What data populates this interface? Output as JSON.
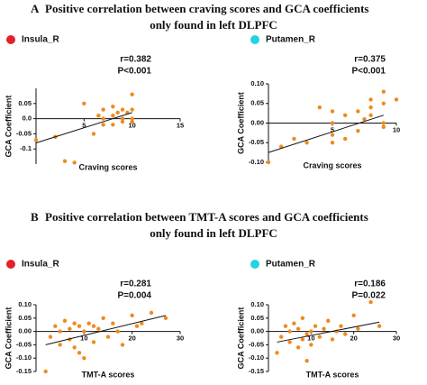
{
  "sections": [
    {
      "label": "A",
      "title_lines": [
        "Positive correlation between craving scores and  GCA coefficients",
        "only found in left DLPFC"
      ]
    },
    {
      "label": "B",
      "title_lines": [
        "Positive correlation between TMT-A scores and  GCA coefficients",
        "only found in left DLPFC"
      ]
    }
  ],
  "chart_data": [
    {
      "type": "scatter",
      "region": "Insula_R",
      "region_color": "#e4202a",
      "r_text": "r=0.382",
      "p_text": "P<0.001",
      "x_label": "Craving scores",
      "y_label": "GCA Coefficient",
      "color": "#ee8a1e",
      "xlim": [
        0,
        15
      ],
      "ylim": [
        -0.15,
        0.1
      ],
      "xticks": [
        5,
        10,
        15
      ],
      "yticks": [
        -0.1,
        -0.05,
        {
          "value": 0,
          "label": "0.0"
        },
        0.05
      ],
      "x": [
        0,
        2,
        3,
        4,
        5,
        6,
        6.5,
        7,
        7,
        7,
        8,
        8,
        8,
        8.5,
        9,
        9,
        9,
        9.5,
        10,
        10,
        10,
        10
      ],
      "values": [
        -0.07,
        -0.06,
        -0.14,
        -0.145,
        0.05,
        -0.05,
        0.01,
        0.03,
        0,
        -0.02,
        0.01,
        -0.02,
        0.04,
        0.02,
        0.03,
        0,
        -0.01,
        0.02,
        0.03,
        0.08,
        0,
        -0.01
      ],
      "trendline": {
        "x": [
          0,
          10
        ],
        "values": [
          -0.08,
          0.02
        ]
      }
    },
    {
      "type": "scatter",
      "region": "Putamen_R",
      "region_color": "#22d3e0",
      "r_text": "r=0.375",
      "p_text": "P<0.001",
      "x_label": "Craving scores",
      "y_label": "GCA Coefficient",
      "color": "#ee8a1e",
      "xlim": [
        0,
        10
      ],
      "ylim": [
        -0.1,
        0.1
      ],
      "xticks": [
        5,
        10
      ],
      "yticks": [
        {
          "value": -0.1,
          "label": "-0.10"
        },
        -0.05,
        {
          "value": 0,
          "label": "0.00"
        },
        0.05,
        {
          "value": 0.1,
          "label": "0.10"
        }
      ],
      "x": [
        0,
        1,
        2,
        3,
        4,
        5,
        5,
        5,
        5,
        6,
        6,
        7,
        7,
        7.5,
        8,
        8,
        8,
        9,
        9,
        9,
        9,
        10
      ],
      "values": [
        -0.1,
        -0.06,
        -0.04,
        -0.05,
        0.04,
        0.03,
        0,
        -0.05,
        -0.03,
        0.02,
        -0.04,
        0.03,
        -0.02,
        0.01,
        0.06,
        0.04,
        0.02,
        0.08,
        0.05,
        0,
        -0.01,
        0.06
      ],
      "trendline": {
        "x": [
          0,
          9
        ],
        "values": [
          -0.075,
          0.02
        ]
      }
    },
    {
      "type": "scatter",
      "region": "Insula_R",
      "region_color": "#e4202a",
      "r_text": "r=0.281",
      "p_text": "P=0.004",
      "x_label": "TMT-A scores",
      "y_label": "GCA Coefficient",
      "color": "#ee8a1e",
      "xlim": [
        0,
        30
      ],
      "ylim": [
        -0.15,
        0.1
      ],
      "xticks": [
        10,
        20,
        30
      ],
      "yticks": [
        -0.15,
        {
          "value": -0.1,
          "label": "-0.10"
        },
        -0.05,
        {
          "value": 0,
          "label": "0.00"
        },
        0.05,
        {
          "value": 0.1,
          "label": "0.10"
        }
      ],
      "x": [
        2,
        3,
        4,
        5,
        5,
        6,
        7,
        7,
        8,
        8,
        9,
        9,
        10,
        10,
        11,
        12,
        12,
        13,
        14,
        15,
        16,
        17,
        18,
        20,
        21,
        22,
        24,
        27
      ],
      "values": [
        -0.15,
        -0.02,
        0.02,
        0,
        -0.05,
        0.04,
        -0.03,
        0.01,
        0.03,
        -0.06,
        0.02,
        -0.08,
        0,
        -0.1,
        0.03,
        0.02,
        -0.04,
        0.01,
        0.05,
        -0.02,
        0.03,
        0,
        -0.05,
        0.06,
        0.02,
        0.03,
        0.07,
        0.05
      ],
      "trendline": {
        "x": [
          2,
          27
        ],
        "values": [
          -0.05,
          0.06
        ]
      }
    },
    {
      "type": "scatter",
      "region": "Putamen_R",
      "region_color": "#22d3e0",
      "r_text": "r=0.186",
      "p_text": "P=0.022",
      "x_label": "TMT-A scores",
      "y_label": "GCA Coefficient",
      "color": "#ee8a1e",
      "xlim": [
        0,
        30
      ],
      "ylim": [
        -0.15,
        0.1
      ],
      "xticks": [
        10,
        20,
        30
      ],
      "yticks": [
        -0.15,
        {
          "value": -0.1,
          "label": "-0.10"
        },
        -0.05,
        {
          "value": 0,
          "label": "0.00"
        },
        0.05,
        {
          "value": 0.1,
          "label": "0.10"
        }
      ],
      "x": [
        2,
        3,
        4,
        5,
        5,
        6,
        7,
        7,
        8,
        8,
        9,
        9,
        10,
        10,
        11,
        12,
        13,
        14,
        15,
        16,
        17,
        18,
        20,
        21,
        24,
        26
      ],
      "values": [
        -0.08,
        -0.02,
        0.02,
        -0.04,
        0,
        0.03,
        -0.06,
        0.01,
        0.05,
        -0.03,
        -0.01,
        -0.11,
        0,
        -0.05,
        0.02,
        -0.02,
        0.01,
        0.04,
        -0.03,
        0,
        0.02,
        -0.01,
        0.06,
        0.01,
        0.11,
        0.02
      ],
      "trendline": {
        "x": [
          2,
          26
        ],
        "values": [
          -0.04,
          0.035
        ]
      }
    }
  ]
}
